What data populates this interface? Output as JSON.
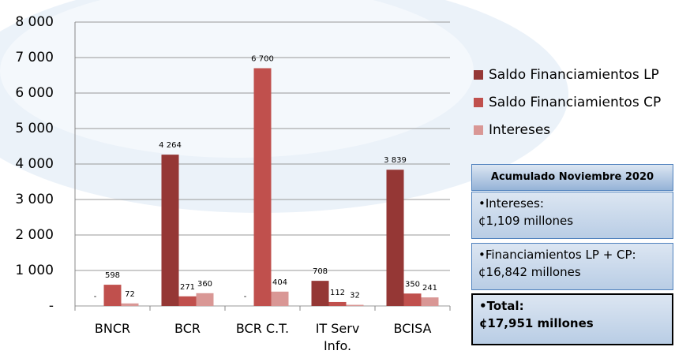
{
  "chart_data": {
    "type": "bar",
    "categories": [
      "BNCR",
      "BCR",
      "BCR C.T.",
      "IT Serv Info.",
      "BCISA"
    ],
    "series": [
      {
        "name": "Saldo Financiamientos LP",
        "color": "#953735",
        "values": [
          0,
          4264,
          0,
          708,
          3839
        ],
        "value_labels": [
          "-",
          "4 264",
          "-",
          "708",
          "3 839"
        ]
      },
      {
        "name": "Saldo Financiamientos CP",
        "color": "#c0504d",
        "values": [
          598,
          271,
          6700,
          112,
          350
        ],
        "value_labels": [
          "598",
          "271",
          "6 700",
          "112",
          "350"
        ]
      },
      {
        "name": "Intereses",
        "color": "#d99795",
        "values": [
          72,
          360,
          404,
          32,
          241
        ],
        "value_labels": [
          "72",
          "360",
          "404",
          "32",
          "241"
        ]
      }
    ],
    "ylim": [
      0,
      8000
    ],
    "yticks": [
      {
        "value": 0,
        "label": "-"
      },
      {
        "value": 1000,
        "label": "1 000"
      },
      {
        "value": 2000,
        "label": "2 000"
      },
      {
        "value": 3000,
        "label": "3 000"
      },
      {
        "value": 4000,
        "label": "4 000"
      },
      {
        "value": 5000,
        "label": "5 000"
      },
      {
        "value": 6000,
        "label": "6 000"
      },
      {
        "value": 7000,
        "label": "7 000"
      },
      {
        "value": 8000,
        "label": "8 000"
      }
    ],
    "grid": true,
    "legend": "right"
  },
  "info": {
    "header": "Acumulado Noviembre 2020",
    "items": [
      [
        "•Intereses:",
        "¢1,109 millones"
      ],
      [
        "•Financiamientos LP + CP:",
        "¢16,842 millones"
      ],
      [
        "•Total:",
        "¢17,951 millones"
      ]
    ]
  }
}
